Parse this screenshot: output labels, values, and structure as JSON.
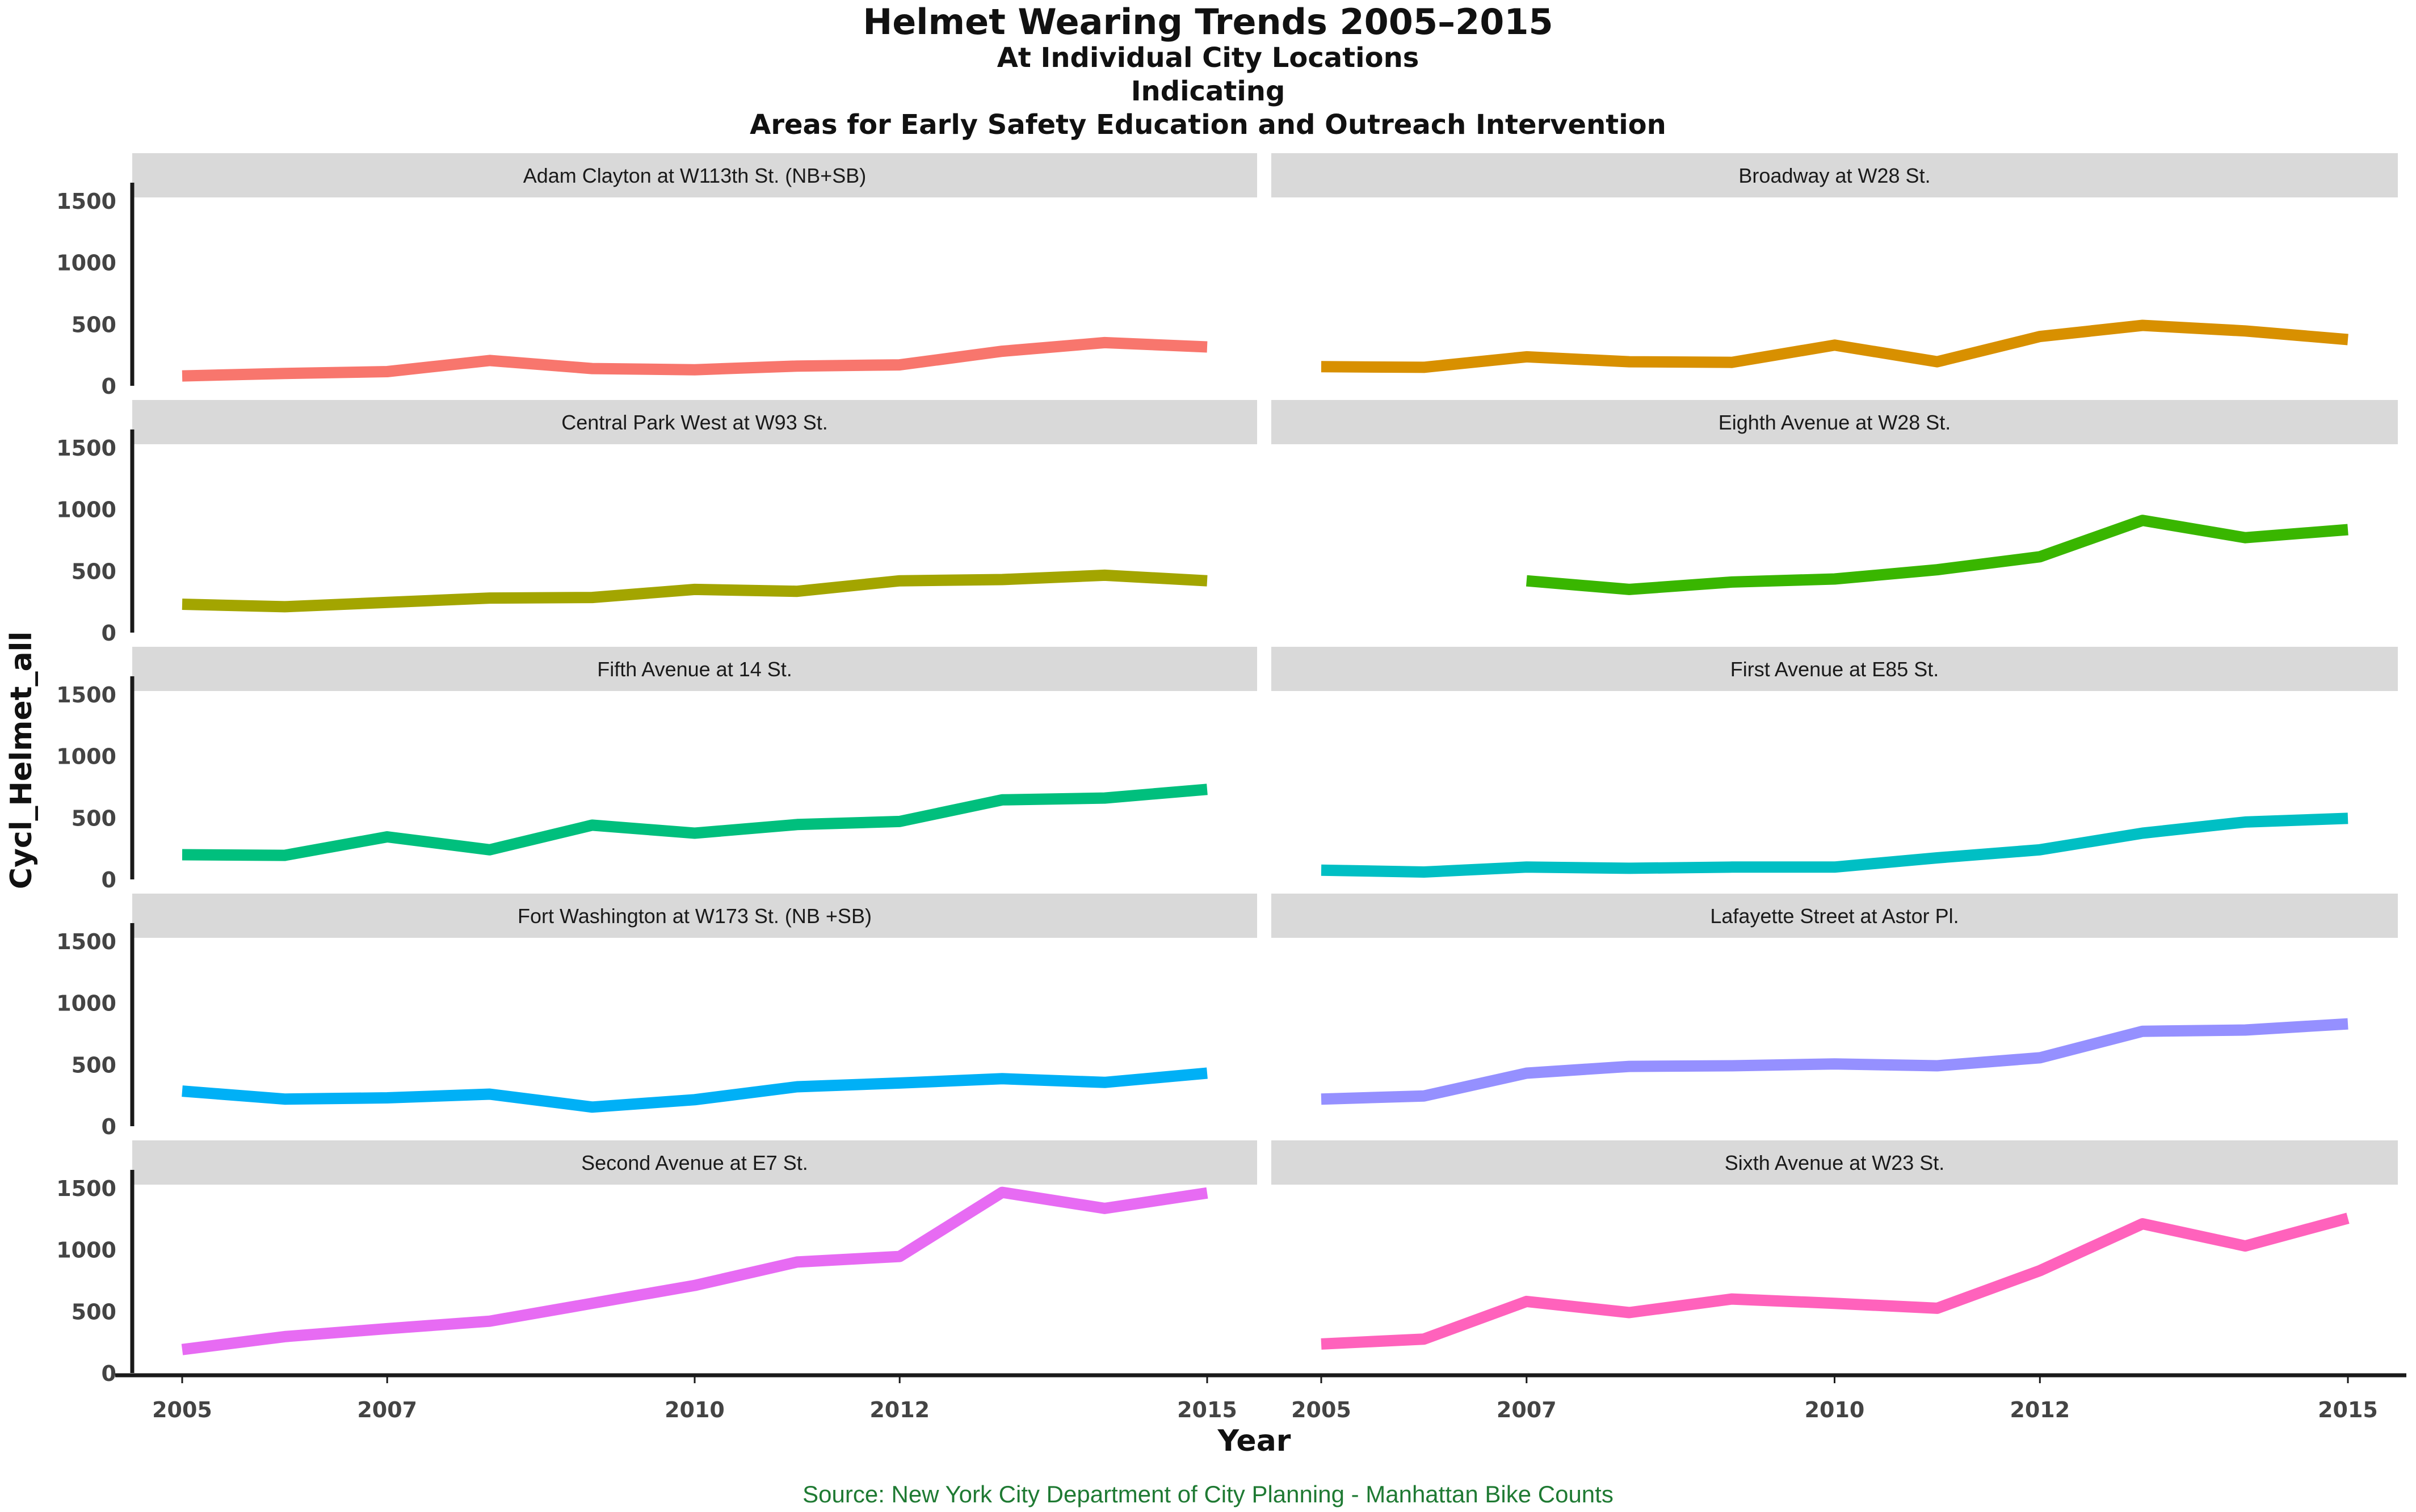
{
  "chart_data": {
    "type": "line",
    "title": "Helmet Wearing Trends 2005–2015",
    "subtitle_lines": [
      "At Individual City Locations",
      "Indicating",
      "Areas for Early Safety Education and Outreach Intervention"
    ],
    "xlabel": "Year",
    "ylabel": "Cycl_Helmet_all",
    "source": "Source:  New York City Department of  City Planning - Manhattan Bike Counts",
    "x": [
      2005,
      2006,
      2007,
      2008,
      2009,
      2010,
      2011,
      2012,
      2013,
      2014,
      2015
    ],
    "xlim": [
      2005,
      2015
    ],
    "ylim": [
      0,
      1500
    ],
    "y_ticks": [
      0,
      500,
      1000,
      1500
    ],
    "x_tick_labels": [
      "2005",
      "2007",
      "2010",
      "2012",
      "2015"
    ],
    "x_tick_values": [
      2005,
      2007,
      2010,
      2012,
      2015
    ],
    "layout": "facet grid, 5 rows x 2 columns",
    "panels": [
      {
        "name": "Adam Clayton at W113th St. (NB+SB)",
        "color": "#F8766D",
        "values": [
          80,
          100,
          115,
          205,
          140,
          130,
          160,
          170,
          280,
          350,
          315
        ]
      },
      {
        "name": "Broadway at W28 St.",
        "color": "#D89000",
        "values": [
          155,
          150,
          235,
          195,
          190,
          330,
          195,
          400,
          490,
          445,
          375
        ]
      },
      {
        "name": "Central Park West at W93 St.",
        "color": "#A3A500",
        "values": [
          230,
          210,
          245,
          280,
          285,
          350,
          335,
          420,
          430,
          465,
          420
        ]
      },
      {
        "name": "Eighth Avenue at W28 St.",
        "color": "#39B600",
        "values": [
          null,
          null,
          420,
          350,
          410,
          435,
          510,
          615,
          910,
          770,
          835
        ]
      },
      {
        "name": "Fifth Avenue at 14 St.",
        "color": "#00BF7D",
        "values": [
          200,
          195,
          345,
          240,
          440,
          375,
          445,
          470,
          645,
          660,
          730
        ]
      },
      {
        "name": "First Avenue at E85 St.",
        "color": "#00BFC4",
        "values": [
          75,
          60,
          100,
          90,
          100,
          100,
          175,
          240,
          375,
          465,
          495
        ]
      },
      {
        "name": "Fort Washington at W173 St. (NB +SB)",
        "color": "#00B0F6",
        "values": [
          285,
          220,
          230,
          260,
          155,
          215,
          320,
          350,
          385,
          355,
          430
        ]
      },
      {
        "name": "Lafayette Street at Astor Pl.",
        "color": "#9590FF",
        "values": [
          220,
          245,
          430,
          485,
          490,
          505,
          490,
          555,
          770,
          780,
          830
        ]
      },
      {
        "name": "Second Avenue at E7 St.",
        "color": "#E76BF3",
        "values": [
          190,
          295,
          360,
          420,
          565,
          710,
          900,
          945,
          1465,
          1335,
          1460
        ]
      },
      {
        "name": "Sixth Avenue at W23 St.",
        "color": "#FF62BC",
        "values": [
          235,
          275,
          580,
          490,
          600,
          565,
          525,
          830,
          1210,
          1030,
          1255
        ]
      }
    ]
  }
}
